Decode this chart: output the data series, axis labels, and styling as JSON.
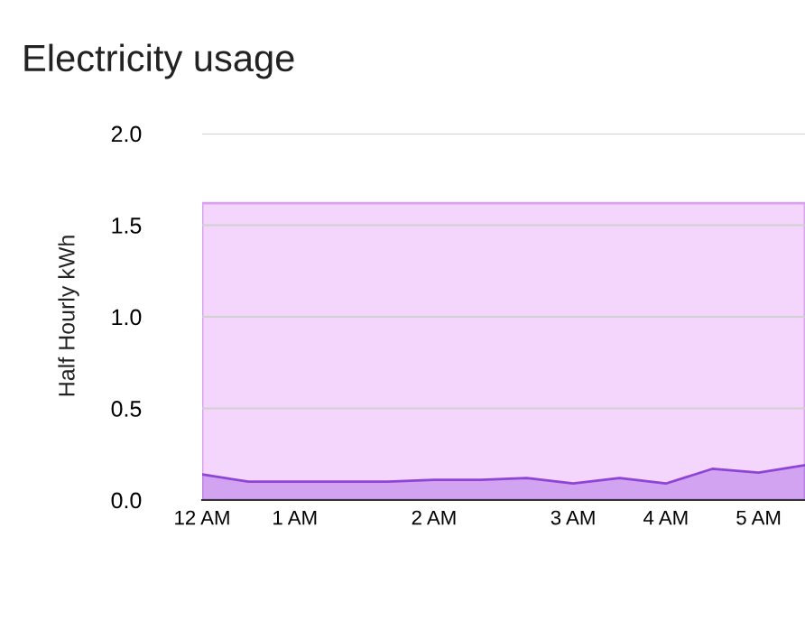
{
  "chart_data": {
    "type": "area",
    "title": "Electricity usage",
    "ylabel": "Half Hourly kWh",
    "categories": [
      "12 AM",
      null,
      "1 AM",
      null,
      null,
      "2 AM",
      null,
      null,
      "3 AM",
      null,
      "4 AM",
      null,
      "5 AM",
      null
    ],
    "series": [
      {
        "color": "#8e44d6",
        "values": [
          0.14,
          0.1,
          0.1,
          0.1,
          0.1,
          0.11,
          0.11,
          0.12,
          0.09,
          0.12,
          0.09,
          0.17,
          0.15,
          0.19
        ]
      }
    ],
    "ylim": [
      0,
      2
    ],
    "yticks": [
      {
        "value": 0,
        "label": "0.0"
      },
      {
        "value": 0.5,
        "label": "0.5"
      },
      {
        "value": 1,
        "label": "1.0"
      },
      {
        "value": 1.5,
        "label": "1.5"
      },
      {
        "value": 2,
        "label": "2.0"
      }
    ],
    "bands": [
      {
        "axis": "y",
        "from": 0,
        "to": 1.62,
        "color": "#f4d6fd"
      }
    ],
    "grid": "y",
    "legend": false
  }
}
